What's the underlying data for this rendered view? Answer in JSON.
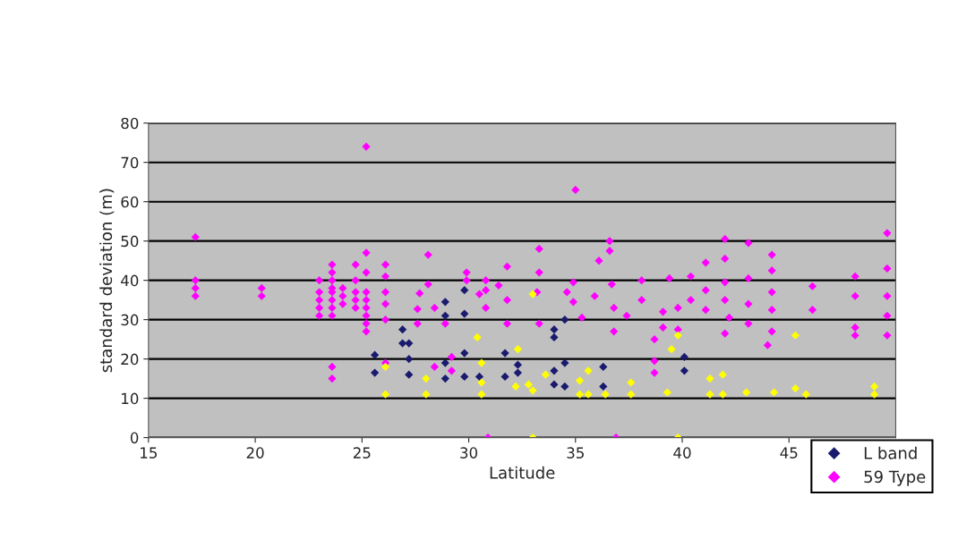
{
  "chart_data": {
    "type": "scatter",
    "xlabel": "Latitude",
    "ylabel": "standard deviation (m)",
    "xlim": [
      15,
      50
    ],
    "xticks": [
      15,
      20,
      25,
      30,
      35,
      40,
      45
    ],
    "ylim": [
      0,
      80
    ],
    "yticks": [
      0,
      10,
      20,
      30,
      40,
      50,
      60,
      70,
      80
    ],
    "grid": "y",
    "legend": "bottom right",
    "marker": "diamond",
    "series": [
      {
        "name": "L band",
        "color": "#1a1a6e",
        "x": [
          25.6,
          25.6,
          26.9,
          26.9,
          27.2,
          27.2,
          27.2,
          28.9,
          28.9,
          28.9,
          28.9,
          29.8,
          29.8,
          29.8,
          29.8,
          30.5,
          31.7,
          31.7,
          32.3,
          32.3,
          34.0,
          34.0,
          34.0,
          34.0,
          34.5,
          34.5,
          34.5,
          36.3,
          36.3,
          40.1,
          40.1
        ],
        "values": [
          21,
          16.5,
          27.5,
          24,
          24,
          20,
          16,
          34.5,
          31,
          19,
          15,
          37.5,
          31.5,
          21.5,
          15.5,
          15.5,
          21.5,
          15.5,
          18.5,
          16.5,
          27.5,
          25.5,
          17,
          13.5,
          30,
          19,
          13,
          18,
          13,
          20.5,
          17
        ]
      },
      {
        "name": "59 Type",
        "color": "#ff00ff",
        "x": [
          17.2,
          17.2,
          17.2,
          17.2,
          20.3,
          20.3,
          23,
          23,
          23,
          23,
          23,
          23.6,
          23.6,
          23.6,
          23.6,
          23.6,
          23.6,
          23.6,
          23.6,
          23.6,
          23.6,
          24.1,
          24.1,
          24.1,
          24.7,
          24.7,
          24.7,
          24.7,
          24.7,
          25.2,
          25.2,
          25.2,
          25.2,
          25.2,
          25.2,
          25.2,
          25.2,
          25.2,
          26.1,
          26.1,
          26.1,
          26.1,
          26.1,
          26.1,
          28.1,
          28.1,
          27.7,
          27.6,
          27.6,
          28.4,
          28.9,
          28.4,
          29.2,
          29.2,
          29.9,
          29.9,
          30.8,
          30.5,
          30.8,
          30.8,
          31.8,
          31.4,
          31.8,
          31.8,
          33.3,
          33.3,
          33.2,
          33.3,
          35.0,
          34.9,
          34.6,
          35.3,
          34.9,
          36.1,
          36.6,
          36.6,
          35.9,
          36.7,
          36.8,
          36.8,
          37.4,
          38.1,
          38.1,
          39.1,
          39.1,
          38.7,
          38.7,
          38.7,
          30.9,
          36.9,
          39.4,
          39.8,
          39.8,
          40.4,
          40.4,
          41.1,
          41.1,
          41.1,
          42.0,
          42.0,
          42.0,
          42.2,
          42.0,
          42.0,
          43.1,
          43.1,
          43.1,
          43.1,
          44.2,
          44.2,
          44.2,
          44.2,
          44.2,
          44.0,
          46.1,
          46.1,
          48.1,
          48.1,
          48.1,
          48.1,
          49.6,
          49.6,
          49.6,
          49.6,
          49.6
        ],
        "values": [
          51,
          40,
          38,
          36,
          38,
          36,
          40,
          37,
          35,
          33,
          31,
          44,
          42,
          40,
          38,
          37,
          35,
          33,
          31,
          18,
          15,
          38,
          36,
          34,
          44,
          40,
          37,
          35,
          33,
          74,
          47,
          42,
          37,
          35,
          33,
          31,
          29,
          27,
          44,
          41,
          37,
          34,
          30,
          19,
          46.5,
          39,
          36.7,
          32.7,
          29,
          33,
          29,
          18,
          20.5,
          17,
          42,
          40,
          40,
          36.5,
          33,
          37.5,
          43.5,
          38.7,
          35,
          29,
          48,
          42,
          37,
          29,
          63,
          39.5,
          37,
          30.5,
          34.5,
          45,
          50,
          47.5,
          36,
          39,
          33,
          27,
          31,
          40,
          35,
          32,
          28,
          25,
          19.5,
          16.5,
          0,
          0,
          40.5,
          33,
          27.5,
          41,
          35,
          44.5,
          37.5,
          32.5,
          50.5,
          45.5,
          39.5,
          30.5,
          26.5,
          35,
          49.5,
          40.5,
          34,
          29,
          46.5,
          42.5,
          37,
          32.5,
          27,
          23.5,
          38.5,
          32.5,
          41,
          36,
          28,
          26,
          52,
          43,
          36,
          31,
          26
        ]
      },
      {
        "color": "#ffff00",
        "x": [
          26.1,
          26.1,
          28.0,
          28.0,
          30.4,
          30.6,
          30.6,
          30.6,
          32.3,
          32.2,
          32.8,
          33.0,
          33.6,
          33.0,
          33.0,
          35.2,
          35.2,
          35.6,
          35.6,
          36.4,
          37.6,
          37.6,
          39.2,
          39.8,
          39.5,
          39.3,
          39.8,
          41.3,
          41.3,
          41.9,
          41.9,
          43.0,
          44.3,
          45.3,
          45.3,
          45.8,
          49.0,
          49.0
        ],
        "values": [
          18,
          11,
          15,
          11,
          25.5,
          19,
          14,
          11,
          22.5,
          13,
          13.5,
          12,
          16,
          36.5,
          0,
          14.5,
          11,
          17,
          11,
          11,
          14,
          11,
          null,
          26,
          22.5,
          11.5,
          0,
          15,
          11,
          16,
          11,
          11.5,
          11.5,
          12.5,
          26,
          11,
          13,
          11
        ]
      }
    ]
  }
}
